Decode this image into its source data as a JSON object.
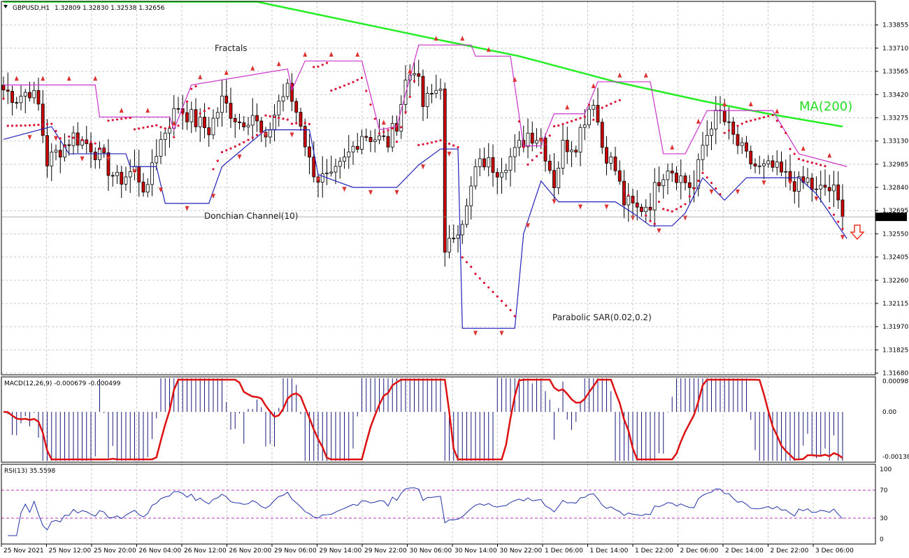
{
  "header": {
    "symbol": "GBPUSD,H1",
    "ohlc": "1.32809 1.32830 1.32538 1.32656"
  },
  "colors": {
    "bull_candle": "#ffffff",
    "bear_candle": "#cc0000",
    "ma200": "#22ee22",
    "donchian_upper": "#cc33cc",
    "donchian_lower": "#2222bb",
    "sar": "#dd1133",
    "fractal": "#dd3333",
    "macd_signal": "#dd1111",
    "macd_hist": "#1a1a7a",
    "rsi": "#2233aa",
    "rsi_levels": "#bb33bb",
    "grid": "#c8c8c8",
    "arrow": "#ee3322"
  },
  "annotations": {
    "fractals": "Fractals",
    "donchian": "Donchian Channel(10)",
    "sar": "Parabolic SAR(0.02,0.2)",
    "ma": "MA(200)"
  },
  "price_axis": {
    "ticks": [
      "1.33855",
      "1.33710",
      "1.33565",
      "1.33420",
      "1.33275",
      "1.33130",
      "1.32985",
      "1.32840",
      "1.32695",
      "1.32550",
      "1.32405",
      "1.32260",
      "1.32115",
      "1.31970",
      "1.31825",
      "1.31680"
    ],
    "current": "1.32656"
  },
  "macd": {
    "label": "MACD(12,26,9) -0.000679 -0.000499",
    "ticks": [
      "0.00098",
      "0.00",
      "-0.001386"
    ]
  },
  "rsi": {
    "label": "RSI(13) 35.5598",
    "ticks": [
      "100",
      "70",
      "30",
      "0"
    ]
  },
  "time_axis": [
    "25 Nov 2021",
    "25 Nov 12:00",
    "25 Nov 20:00",
    "26 Nov 04:00",
    "26 Nov 12:00",
    "26 Nov 20:00",
    "29 Nov 06:00",
    "29 Nov 14:00",
    "29 Nov 22:00",
    "30 Nov 06:00",
    "30 Nov 14:00",
    "30 Nov 22:00",
    "1 Dec 06:00",
    "1 Dec 14:00",
    "1 Dec 22:00",
    "2 Dec 06:00",
    "2 Dec 14:00",
    "2 Dec 22:00",
    "3 Dec 06:00"
  ],
  "chart_data": {
    "type": "candlestick",
    "symbol": "GBPUSD",
    "timeframe": "H1",
    "ylim": [
      1.3168,
      1.34
    ],
    "anchors": [
      {
        "bar": 0,
        "price": 1.3345
      },
      {
        "bar": 3,
        "price": 1.334
      },
      {
        "bar": 6,
        "price": 1.3345
      },
      {
        "bar": 8,
        "price": 1.3335
      },
      {
        "bar": 10,
        "price": 1.33
      },
      {
        "bar": 13,
        "price": 1.3308
      },
      {
        "bar": 16,
        "price": 1.3316
      },
      {
        "bar": 20,
        "price": 1.331
      },
      {
        "bar": 23,
        "price": 1.33
      },
      {
        "bar": 26,
        "price": 1.3288
      },
      {
        "bar": 30,
        "price": 1.3295
      },
      {
        "bar": 33,
        "price": 1.328
      },
      {
        "bar": 34,
        "price": 1.33
      },
      {
        "bar": 37,
        "price": 1.332
      },
      {
        "bar": 40,
        "price": 1.3335
      },
      {
        "bar": 44,
        "price": 1.3325
      },
      {
        "bar": 47,
        "price": 1.332
      },
      {
        "bar": 50,
        "price": 1.3338
      },
      {
        "bar": 54,
        "price": 1.3325
      },
      {
        "bar": 57,
        "price": 1.333
      },
      {
        "bar": 60,
        "price": 1.331
      },
      {
        "bar": 61,
        "price": 1.3322
      },
      {
        "bar": 63,
        "price": 1.3338
      },
      {
        "bar": 65,
        "price": 1.3345
      },
      {
        "bar": 68,
        "price": 1.3325
      },
      {
        "bar": 70,
        "price": 1.33
      },
      {
        "bar": 72,
        "price": 1.329
      },
      {
        "bar": 75,
        "price": 1.3288
      },
      {
        "bar": 78,
        "price": 1.33
      },
      {
        "bar": 82,
        "price": 1.3318
      },
      {
        "bar": 85,
        "price": 1.3315
      },
      {
        "bar": 88,
        "price": 1.3312
      },
      {
        "bar": 90,
        "price": 1.3325
      },
      {
        "bar": 92,
        "price": 1.335
      },
      {
        "bar": 94,
        "price": 1.336
      },
      {
        "bar": 96,
        "price": 1.3335
      },
      {
        "bar": 99,
        "price": 1.3345
      },
      {
        "bar": 100,
        "price": 1.335
      },
      {
        "bar": 101,
        "price": 1.324
      },
      {
        "bar": 103,
        "price": 1.3255
      },
      {
        "bar": 106,
        "price": 1.327
      },
      {
        "bar": 108,
        "price": 1.3295
      },
      {
        "bar": 110,
        "price": 1.33
      },
      {
        "bar": 113,
        "price": 1.3296
      },
      {
        "bar": 117,
        "price": 1.3305
      },
      {
        "bar": 120,
        "price": 1.3318
      },
      {
        "bar": 123,
        "price": 1.3315
      },
      {
        "bar": 126,
        "price": 1.3287
      },
      {
        "bar": 128,
        "price": 1.331
      },
      {
        "bar": 131,
        "price": 1.3312
      },
      {
        "bar": 133,
        "price": 1.3328
      },
      {
        "bar": 135,
        "price": 1.334
      },
      {
        "bar": 137,
        "price": 1.331
      },
      {
        "bar": 140,
        "price": 1.3295
      },
      {
        "bar": 142,
        "price": 1.3275
      },
      {
        "bar": 145,
        "price": 1.327
      },
      {
        "bar": 148,
        "price": 1.3275
      },
      {
        "bar": 150,
        "price": 1.329
      },
      {
        "bar": 152,
        "price": 1.3298
      },
      {
        "bar": 155,
        "price": 1.329
      },
      {
        "bar": 158,
        "price": 1.3283
      },
      {
        "bar": 160,
        "price": 1.331
      },
      {
        "bar": 162,
        "price": 1.3325
      },
      {
        "bar": 164,
        "price": 1.333
      },
      {
        "bar": 167,
        "price": 1.3315
      },
      {
        "bar": 170,
        "price": 1.3302
      },
      {
        "bar": 173,
        "price": 1.3295
      },
      {
        "bar": 176,
        "price": 1.3296
      },
      {
        "bar": 179,
        "price": 1.329
      },
      {
        "bar": 182,
        "price": 1.3285
      },
      {
        "bar": 184,
        "price": 1.3288
      },
      {
        "bar": 186,
        "price": 1.328
      },
      {
        "bar": 188,
        "price": 1.3284
      },
      {
        "bar": 190,
        "price": 1.3281
      },
      {
        "bar": 192,
        "price": 1.3266
      }
    ],
    "ma200": [
      [
        0,
        1.34
      ],
      [
        58,
        1.34
      ],
      [
        100,
        1.3376
      ],
      [
        118,
        1.3366
      ],
      [
        140,
        1.335
      ],
      [
        160,
        1.3338
      ],
      [
        175,
        1.333
      ],
      [
        192,
        1.3322
      ]
    ],
    "donchian_upper": [
      [
        0,
        1.3348
      ],
      [
        21,
        1.3348
      ],
      [
        22,
        1.3328
      ],
      [
        38,
        1.3328
      ],
      [
        39,
        1.332
      ],
      [
        43,
        1.3348
      ],
      [
        65,
        1.3358
      ],
      [
        66,
        1.3345
      ],
      [
        69,
        1.3363
      ],
      [
        82,
        1.3363
      ],
      [
        86,
        1.332
      ],
      [
        90,
        1.3322
      ],
      [
        95,
        1.3373
      ],
      [
        107,
        1.3373
      ],
      [
        108,
        1.3366
      ],
      [
        116,
        1.3366
      ],
      [
        119,
        1.331
      ],
      [
        123,
        1.331
      ],
      [
        126,
        1.333
      ],
      [
        133,
        1.333
      ],
      [
        136,
        1.335
      ],
      [
        148,
        1.335
      ],
      [
        151,
        1.3305
      ],
      [
        156,
        1.3305
      ],
      [
        161,
        1.3332
      ],
      [
        176,
        1.3332
      ],
      [
        182,
        1.3305
      ],
      [
        193,
        1.3297
      ]
    ],
    "donchian_lower": [
      [
        0,
        1.3314
      ],
      [
        11,
        1.3322
      ],
      [
        15,
        1.3305
      ],
      [
        28,
        1.3305
      ],
      [
        29,
        1.3297
      ],
      [
        35,
        1.3297
      ],
      [
        37,
        1.3274
      ],
      [
        47,
        1.3274
      ],
      [
        50,
        1.3297
      ],
      [
        60,
        1.332
      ],
      [
        70,
        1.332
      ],
      [
        72,
        1.3292
      ],
      [
        80,
        1.3284
      ],
      [
        90,
        1.3284
      ],
      [
        95,
        1.3298
      ],
      [
        100,
        1.3308
      ],
      [
        104,
        1.3308
      ],
      [
        105,
        1.3196
      ],
      [
        117,
        1.3196
      ],
      [
        119,
        1.3255
      ],
      [
        123,
        1.3288
      ],
      [
        127,
        1.3275
      ],
      [
        140,
        1.3275
      ],
      [
        144,
        1.3268
      ],
      [
        148,
        1.326
      ],
      [
        153,
        1.326
      ],
      [
        156,
        1.3268
      ],
      [
        160,
        1.329
      ],
      [
        165,
        1.3276
      ],
      [
        170,
        1.329
      ],
      [
        182,
        1.329
      ],
      [
        186,
        1.328
      ],
      [
        193,
        1.3252
      ]
    ]
  }
}
